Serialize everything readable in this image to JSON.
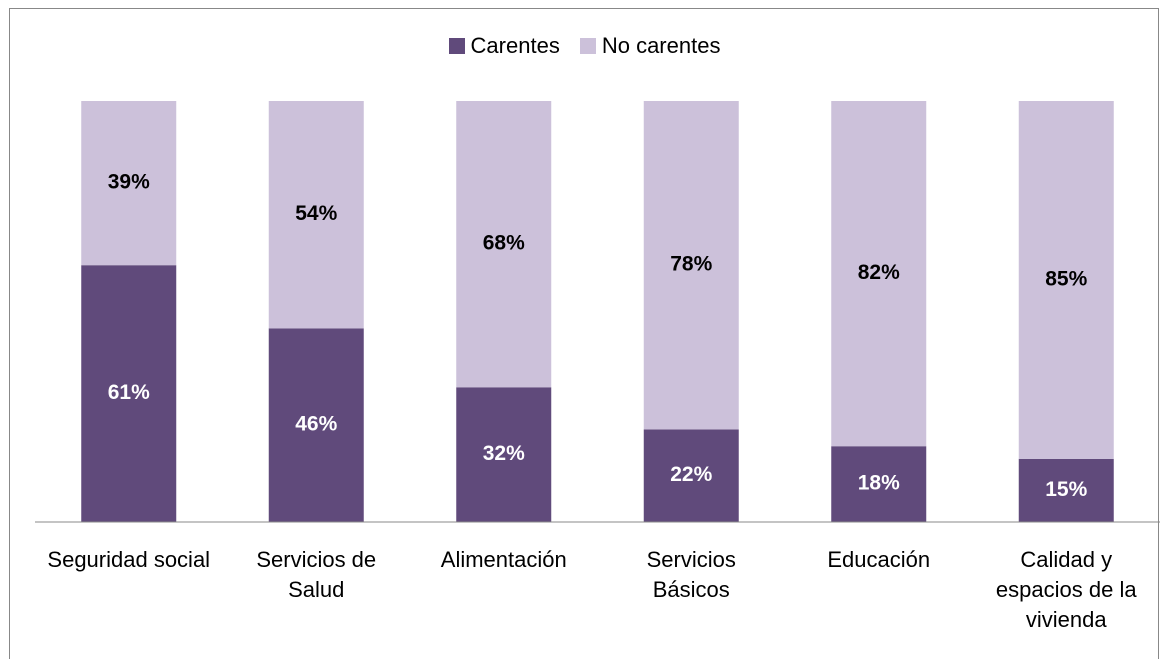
{
  "chart_data": {
    "type": "stacked_bar",
    "categories": [
      "Seguridad social",
      "Servicios de Salud",
      "Alimentación",
      "Servicios Básicos",
      "Educación",
      "Calidad y espacios de la vivienda"
    ],
    "series": [
      {
        "name": "Carentes",
        "color": "#604a7b",
        "values": [
          61,
          46,
          32,
          22,
          18,
          15
        ],
        "value_labels": [
          "61%",
          "46%",
          "32%",
          "22%",
          "18%",
          "15%"
        ],
        "label_color": "#ffffff"
      },
      {
        "name": "No carentes",
        "color": "#ccc1da",
        "values": [
          39,
          54,
          68,
          78,
          82,
          85
        ],
        "value_labels": [
          "39%",
          "54%",
          "68%",
          "78%",
          "82%",
          "85%"
        ],
        "label_color": "#000000"
      }
    ],
    "legend": "top"
  }
}
